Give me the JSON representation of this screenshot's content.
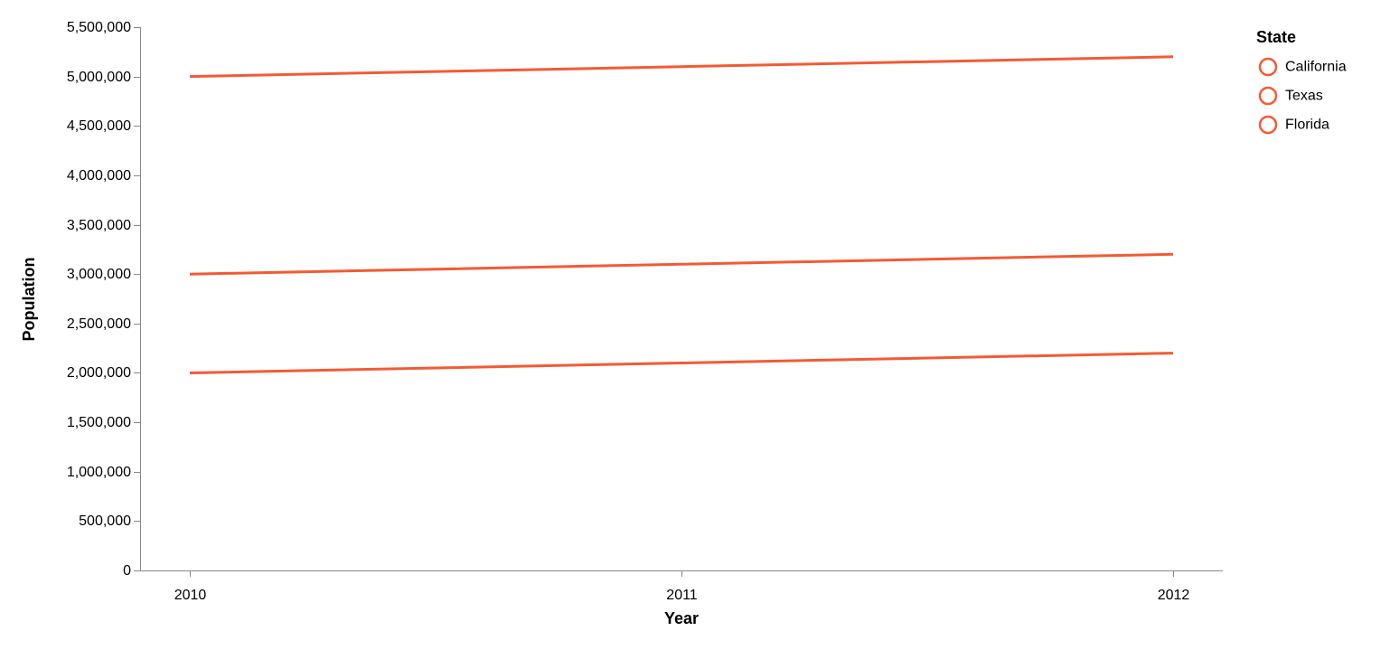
{
  "chart_data": {
    "type": "line",
    "xlabel": "Year",
    "ylabel": "Population",
    "x": [
      2010,
      2011,
      2012
    ],
    "x_ticks": [
      "2010",
      "2011",
      "2012"
    ],
    "ylim": [
      0,
      5500000
    ],
    "y_ticks": [
      "0",
      "500,000",
      "1,000,000",
      "1,500,000",
      "2,000,000",
      "2,500,000",
      "3,000,000",
      "3,500,000",
      "4,000,000",
      "4,500,000",
      "5,000,000",
      "5,500,000"
    ],
    "grid": false,
    "legend": {
      "title": "State",
      "placement": "top-right",
      "items": [
        "California",
        "Texas",
        "Florida"
      ]
    },
    "series": [
      {
        "name": "California",
        "values": [
          5000000,
          5100000,
          5200000
        ]
      },
      {
        "name": "Texas",
        "values": [
          3000000,
          3100000,
          3200000
        ]
      },
      {
        "name": "Florida",
        "values": [
          2000000,
          2100000,
          2200000
        ]
      }
    ],
    "colors": {
      "line": "#f45a34",
      "axis": "#888888"
    }
  }
}
